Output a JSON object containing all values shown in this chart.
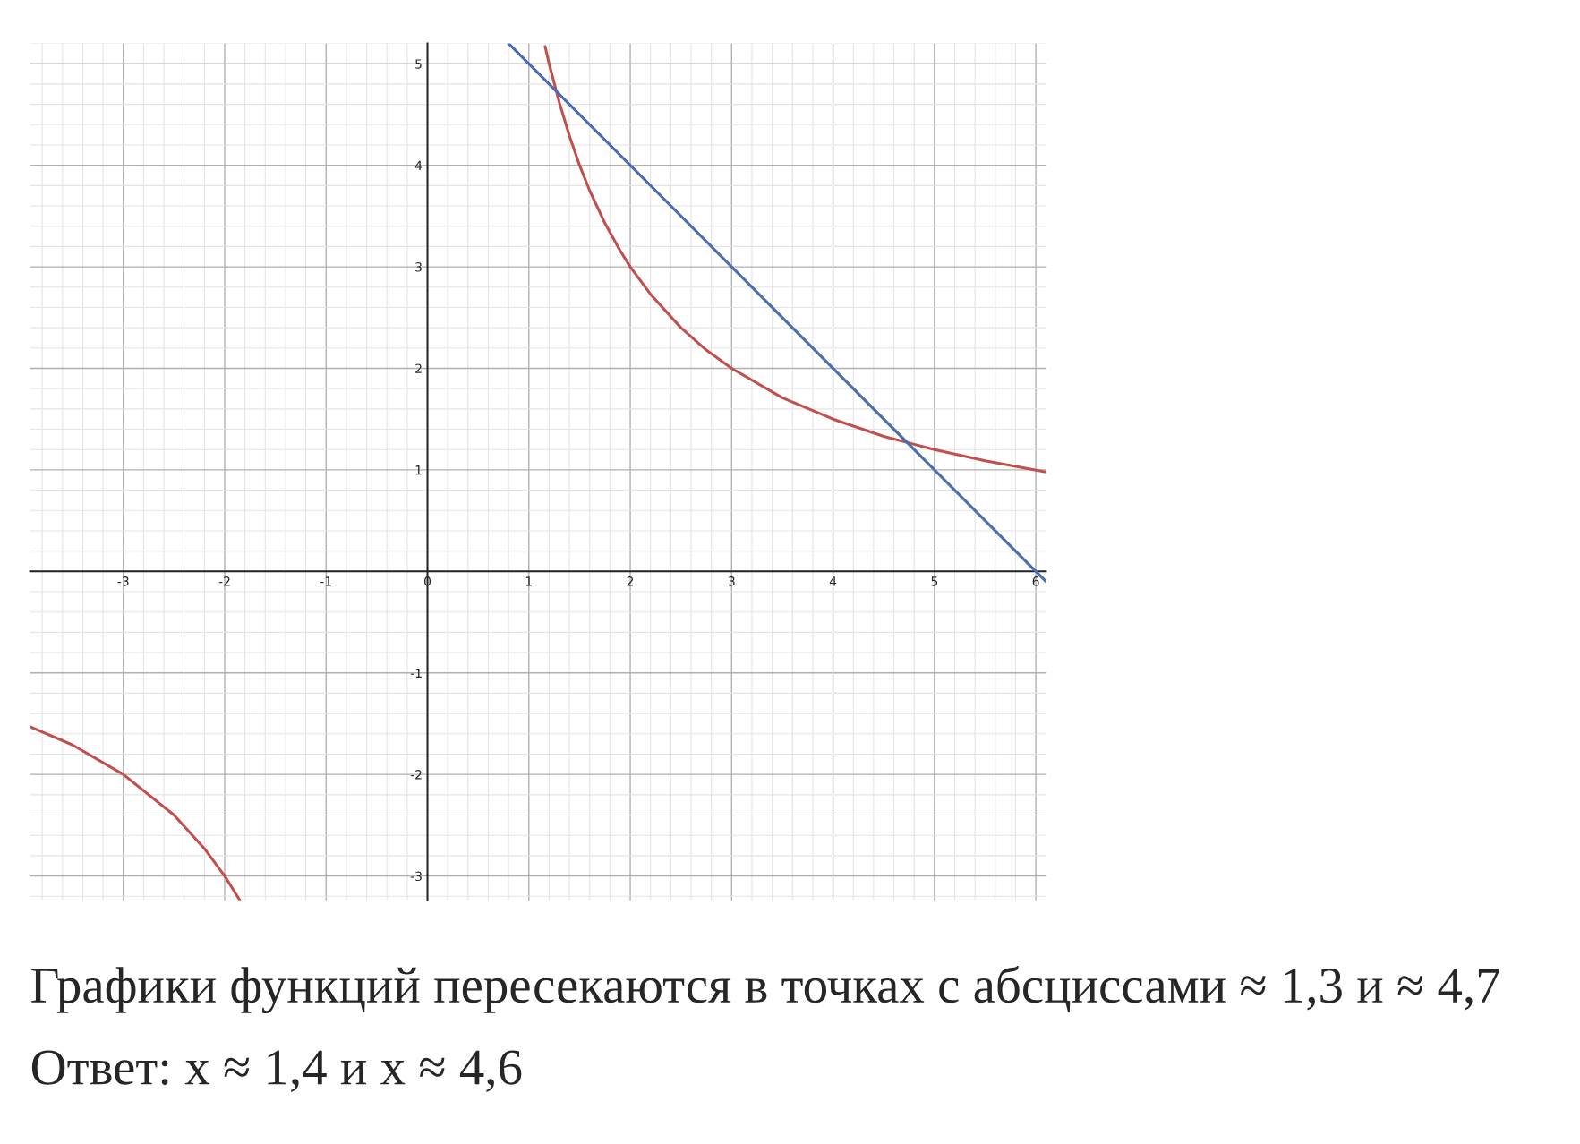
{
  "chart_data": {
    "type": "line",
    "series": [
      {
        "color": "#c0504d",
        "x": [
          1.16,
          1.2,
          1.3,
          1.4,
          1.5,
          1.6,
          1.75,
          1.9,
          2,
          2.2,
          2.5,
          2.75,
          3,
          3.5,
          4,
          4.5,
          5,
          5.5,
          6.1
        ],
        "values": [
          5.17,
          5.0,
          4.62,
          4.29,
          4.0,
          3.75,
          3.43,
          3.16,
          3.0,
          2.73,
          2.4,
          2.18,
          2.0,
          1.71,
          1.5,
          1.33,
          1.2,
          1.09,
          0.98
        ]
      },
      {
        "color": "#c0504d",
        "x": [
          -3.92,
          -3.5,
          -3.0,
          -2.5,
          -2.2,
          -2.0,
          -1.85
        ],
        "values": [
          -1.53,
          -1.71,
          -2.0,
          -2.4,
          -2.73,
          -3.0,
          -3.24
        ]
      },
      {
        "color": "#4a6bb5",
        "x": [
          0.8,
          6.1
        ],
        "values": [
          5.2,
          -0.1
        ]
      }
    ],
    "xlim": [
      -3.92,
      6.1
    ],
    "ylim": [
      -3.24,
      5.2
    ],
    "xticks": [
      -3,
      -2,
      -1,
      0,
      1,
      2,
      3,
      4,
      5,
      6
    ],
    "yticks": [
      -3,
      -2,
      -1,
      1,
      2,
      3,
      4,
      5
    ],
    "grid": true,
    "marker": "none",
    "line_style": "solid",
    "annotations": [
      "Графики функций пересекаются в точках с абсциссами ≈ 1,3 и ≈ 4,7",
      "Ответ: x ≈ 1,4 и x ≈ 4,6"
    ]
  }
}
